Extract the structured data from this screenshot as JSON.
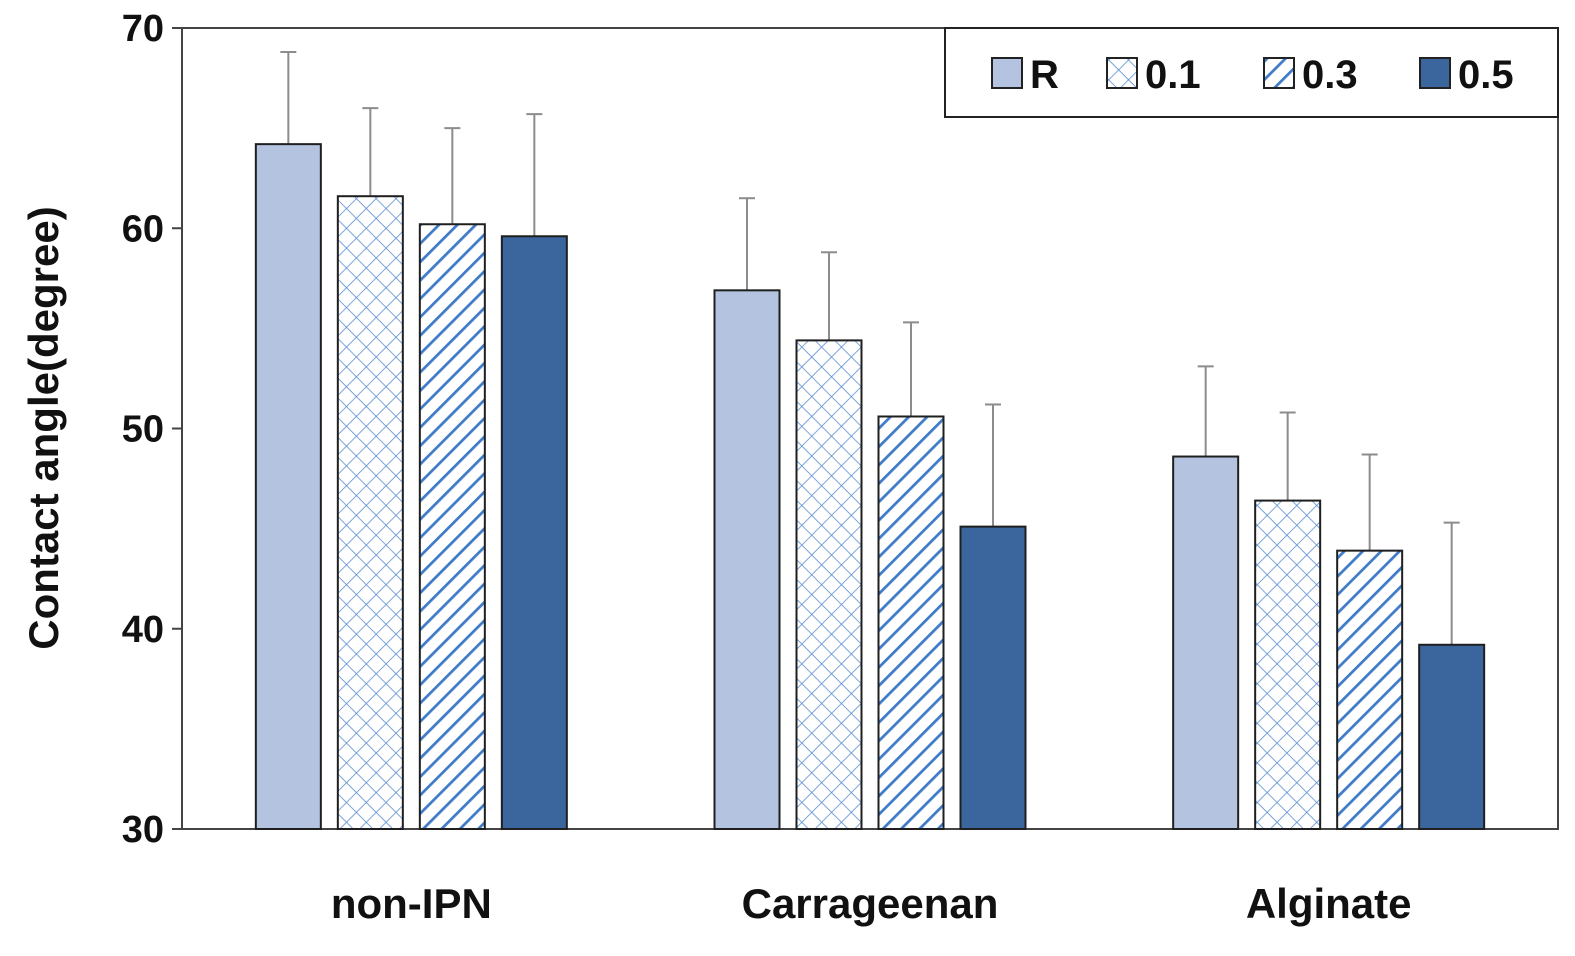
{
  "chart_data": {
    "type": "bar",
    "title": "",
    "xlabel": "",
    "ylabel": "Contact angle(degree)",
    "ylim": [
      30,
      70
    ],
    "yticks": [
      30,
      40,
      50,
      60,
      70
    ],
    "categories": [
      "non-IPN",
      "Carrageenan",
      "Alginate"
    ],
    "series": [
      {
        "name": "R",
        "pattern": "solid-light",
        "color": "#b4c3df",
        "values": [
          64.2,
          56.9,
          48.6
        ],
        "errors": [
          4.6,
          4.6,
          4.5
        ]
      },
      {
        "name": "0.1",
        "pattern": "crosshatch",
        "color": "#5b8fd1",
        "values": [
          61.6,
          54.4,
          46.4
        ],
        "errors": [
          4.4,
          4.4,
          4.4
        ]
      },
      {
        "name": "0.3",
        "pattern": "diagonal",
        "color": "#3f7bc8",
        "values": [
          60.2,
          50.6,
          43.9
        ],
        "errors": [
          4.8,
          4.7,
          4.8
        ]
      },
      {
        "name": "0.5",
        "pattern": "solid-dark",
        "color": "#3a659d",
        "values": [
          59.6,
          45.1,
          39.2
        ],
        "errors": [
          6.1,
          6.1,
          6.1
        ]
      }
    ],
    "legend_position": "top-right",
    "grid": false
  }
}
